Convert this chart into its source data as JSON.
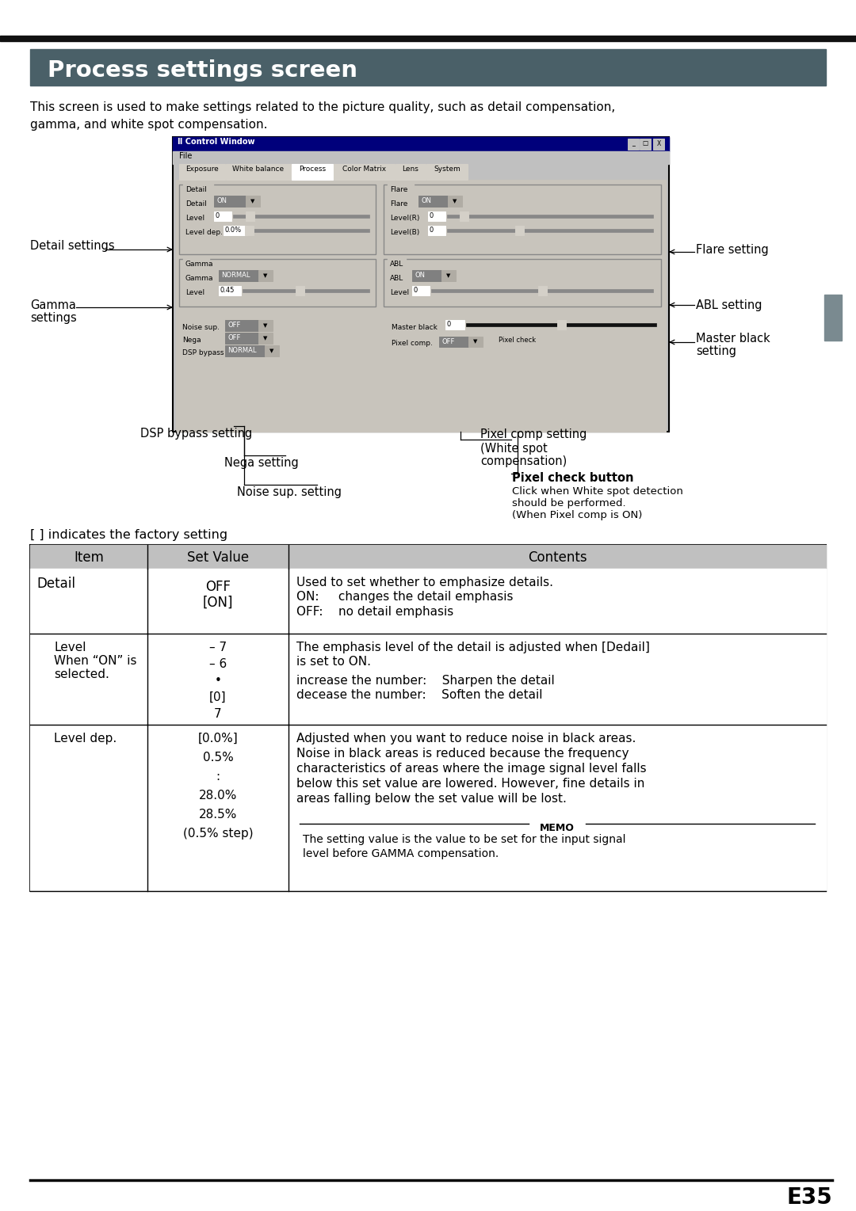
{
  "page_bg": "#ffffff",
  "top_bar_color": "#111111",
  "header_bg": "#4a6068",
  "header_text": "Process settings screen",
  "header_text_color": "#ffffff",
  "body_text_1": "This screen is used to make settings related to the picture quality, such as detail compensation,",
  "body_text_2": "gamma, and white spot compensation.",
  "body_font_size": 11.0,
  "annotation_font_size": 10.5,
  "footer_line_color": "#000000",
  "footer_text": "E35",
  "indicates_text": "[ ] indicates the factory setting",
  "sidebar_color": "#7a8a90",
  "win_bg": "#c0c0c0",
  "content_bg": "#c8c4bc",
  "dark_slider_bg": "#303030"
}
